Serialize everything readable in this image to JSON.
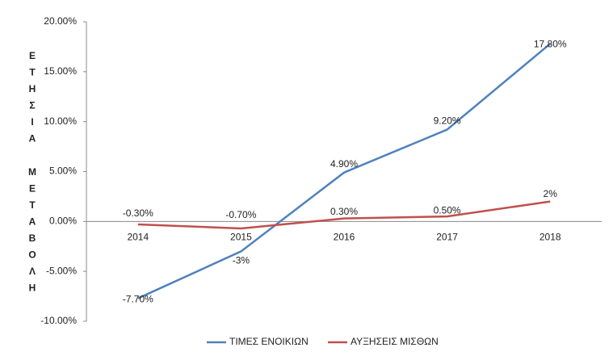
{
  "chart_data": {
    "type": "line",
    "y_label": "ΕΤΗΣΙΑ ΜΕΤΑΒΟΛΗ",
    "categories": [
      "2014",
      "2015",
      "2016",
      "2017",
      "2018"
    ],
    "series": [
      {
        "name": "ΤΙΜΕΣ ΕΝΟΙΚΙΩΝ",
        "color": "#4f81bd",
        "values": [
          -7.7,
          -3,
          4.9,
          9.2,
          17.8
        ],
        "value_labels": [
          "-7.70%",
          "-3%",
          "4.90%",
          "9.20%",
          "17.80%"
        ]
      },
      {
        "name": "ΑΥΞΗΣΕΙΣ ΜΙΣΘΩΝ",
        "color": "#c0504d",
        "values": [
          -0.3,
          -0.7,
          0.3,
          0.5,
          2
        ],
        "value_labels": [
          "-0.30%",
          "-0.70%",
          "0.30%",
          "0.50%",
          "2%"
        ]
      }
    ],
    "ylim": [
      -10,
      20
    ],
    "yticks": [
      {
        "value": -10,
        "label": "-10.00%"
      },
      {
        "value": -5,
        "label": "-5.00%"
      },
      {
        "value": 0,
        "label": "0.00%"
      },
      {
        "value": 5,
        "label": "5.00%"
      },
      {
        "value": 10,
        "label": "10.00%"
      },
      {
        "value": 15,
        "label": "15.00%"
      },
      {
        "value": 20,
        "label": "20.00%"
      }
    ],
    "grid": false,
    "legend": "bottom"
  }
}
